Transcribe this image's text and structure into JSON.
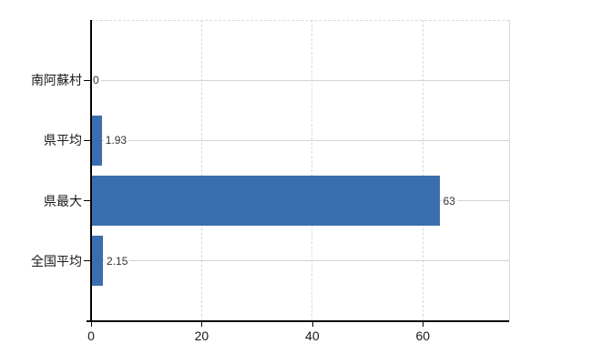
{
  "chart_data": {
    "type": "bar",
    "orientation": "horizontal",
    "title": "",
    "xlabel": "",
    "ylabel": "",
    "categories": [
      "南阿蘇村",
      "県平均",
      "県最大",
      "全国平均"
    ],
    "values": [
      0,
      1.93,
      63,
      2.15
    ],
    "value_labels": [
      "0",
      "1.93",
      "63",
      "2.15"
    ],
    "x_ticks": [
      0,
      20,
      40,
      60
    ],
    "x_tick_labels": [
      "0",
      "20",
      "40",
      "60"
    ],
    "xlim": [
      0,
      75.6
    ],
    "grid": true,
    "legend": false,
    "colors": {
      "bar": "#3b6eae",
      "horizontal_grid": "#cfd6cf",
      "vertical_grid": "#d9d9d9",
      "axis": "#000000",
      "label_text": "#1a1a1a",
      "value_text": "#333333",
      "background": "#ffffff"
    }
  }
}
